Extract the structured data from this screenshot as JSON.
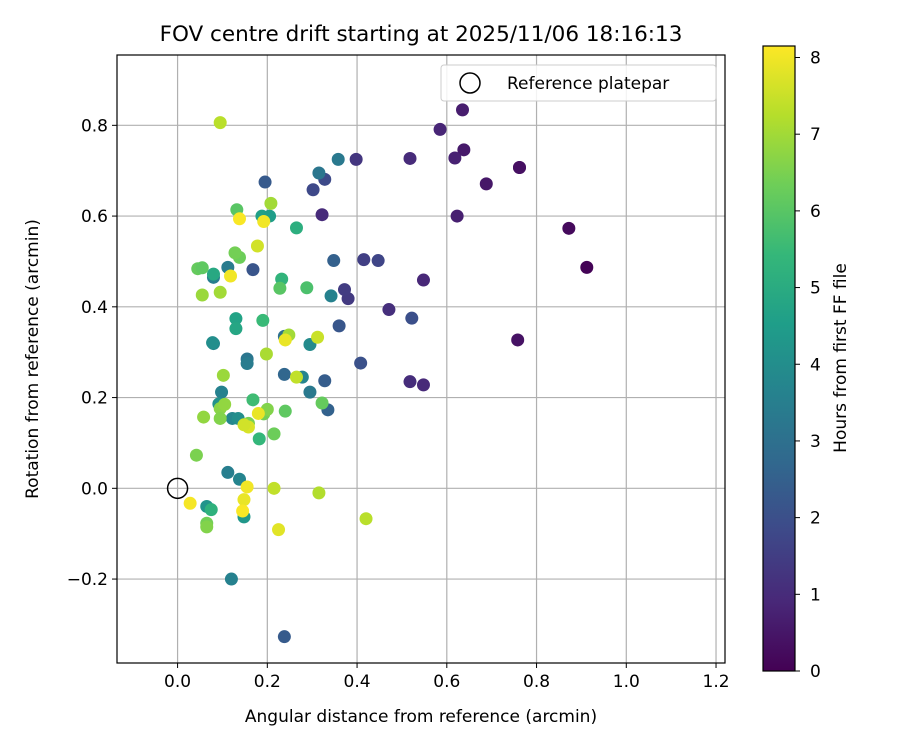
{
  "chart_data": {
    "type": "scatter",
    "title": "FOV centre drift starting at 2025/11/06 18:16:13",
    "xlabel": "Angular distance from reference (arcmin)",
    "ylabel": "Rotation from reference (arcmin)",
    "xlim": [
      -0.135,
      1.22
    ],
    "ylim": [
      -0.385,
      0.955
    ],
    "xticks": [
      0.0,
      0.2,
      0.4,
      0.6,
      0.8,
      1.0,
      1.2
    ],
    "xtick_labels": [
      "0.0",
      "0.2",
      "0.4",
      "0.6",
      "0.8",
      "1.0",
      "1.2"
    ],
    "yticks": [
      -0.2,
      0.0,
      0.2,
      0.4,
      0.6,
      0.8
    ],
    "ytick_labels": [
      "−0.2",
      "0.0",
      "0.2",
      "0.4",
      "0.6",
      "0.8"
    ],
    "grid": true,
    "legend": {
      "position": "top-right",
      "entries": [
        "Reference platepar"
      ]
    },
    "reference_point": {
      "x": 0.0,
      "y": 0.0,
      "label": "Reference platepar"
    },
    "colorbar": {
      "label": "Hours from first FF file",
      "min": 0,
      "max": 8.15,
      "ticks": [
        0,
        1,
        2,
        3,
        4,
        5,
        6,
        7,
        8
      ],
      "tick_labels": [
        "0",
        "1",
        "2",
        "3",
        "4",
        "5",
        "6",
        "7",
        "8"
      ],
      "colormap": "viridis"
    },
    "points": [
      {
        "x": 0.912,
        "y": 0.487,
        "h": 0.05
      },
      {
        "x": 0.872,
        "y": 0.573,
        "h": 0.2
      },
      {
        "x": 0.762,
        "y": 0.707,
        "h": 0.25
      },
      {
        "x": 0.762,
        "y": 0.707,
        "h": 0.35
      },
      {
        "x": 0.758,
        "y": 0.327,
        "h": 0.4
      },
      {
        "x": 0.688,
        "y": 0.671,
        "h": 0.5
      },
      {
        "x": 0.638,
        "y": 0.746,
        "h": 0.55
      },
      {
        "x": 0.635,
        "y": 0.834,
        "h": 0.65
      },
      {
        "x": 0.623,
        "y": 0.6,
        "h": 0.7
      },
      {
        "x": 0.618,
        "y": 0.728,
        "h": 0.75
      },
      {
        "x": 0.585,
        "y": 0.791,
        "h": 0.85
      },
      {
        "x": 0.548,
        "y": 0.459,
        "h": 0.9
      },
      {
        "x": 0.548,
        "y": 0.228,
        "h": 0.95
      },
      {
        "x": 0.518,
        "y": 0.727,
        "h": 1.0
      },
      {
        "x": 0.518,
        "y": 0.235,
        "h": 1.05
      },
      {
        "x": 0.471,
        "y": 0.394,
        "h": 1.1
      },
      {
        "x": 0.398,
        "y": 0.725,
        "h": 1.3
      },
      {
        "x": 0.38,
        "y": 0.418,
        "h": 1.4
      },
      {
        "x": 0.372,
        "y": 0.438,
        "h": 1.45
      },
      {
        "x": 0.322,
        "y": 0.603,
        "h": 1.0
      },
      {
        "x": 0.415,
        "y": 0.504,
        "h": 1.55
      },
      {
        "x": 0.447,
        "y": 0.502,
        "h": 1.7
      },
      {
        "x": 0.328,
        "y": 0.681,
        "h": 1.85
      },
      {
        "x": 0.302,
        "y": 0.658,
        "h": 1.8
      },
      {
        "x": 0.522,
        "y": 0.375,
        "h": 2.0
      },
      {
        "x": 0.408,
        "y": 0.276,
        "h": 2.05
      },
      {
        "x": 0.36,
        "y": 0.358,
        "h": 2.2
      },
      {
        "x": 0.348,
        "y": 0.502,
        "h": 2.5
      },
      {
        "x": 0.195,
        "y": 0.675,
        "h": 2.3
      },
      {
        "x": 0.168,
        "y": 0.482,
        "h": 2.15
      },
      {
        "x": 0.328,
        "y": 0.237,
        "h": 2.4
      },
      {
        "x": 0.335,
        "y": 0.173,
        "h": 2.55
      },
      {
        "x": 0.238,
        "y": 0.251,
        "h": 2.7
      },
      {
        "x": 0.238,
        "y": -0.327,
        "h": 2.35
      },
      {
        "x": 0.358,
        "y": 0.725,
        "h": 3.3
      },
      {
        "x": 0.315,
        "y": 0.695,
        "h": 3.2
      },
      {
        "x": 0.342,
        "y": 0.424,
        "h": 3.6
      },
      {
        "x": 0.238,
        "y": 0.335,
        "h": 3.0
      },
      {
        "x": 0.295,
        "y": 0.212,
        "h": 3.3
      },
      {
        "x": 0.278,
        "y": 0.245,
        "h": 3.7
      },
      {
        "x": 0.295,
        "y": 0.317,
        "h": 3.9
      },
      {
        "x": 0.155,
        "y": 0.285,
        "h": 3.2
      },
      {
        "x": 0.155,
        "y": 0.275,
        "h": 3.4
      },
      {
        "x": 0.112,
        "y": 0.487,
        "h": 3.4
      },
      {
        "x": 0.08,
        "y": 0.465,
        "h": 3.5
      },
      {
        "x": 0.08,
        "y": 0.319,
        "h": 3.8
      },
      {
        "x": 0.078,
        "y": 0.321,
        "h": 4.0
      },
      {
        "x": 0.098,
        "y": 0.212,
        "h": 3.6
      },
      {
        "x": 0.112,
        "y": 0.035,
        "h": 3.5
      },
      {
        "x": 0.12,
        "y": -0.2,
        "h": 3.6
      },
      {
        "x": 0.138,
        "y": 0.02,
        "h": 3.7
      },
      {
        "x": 0.122,
        "y": 0.154,
        "h": 3.8
      },
      {
        "x": 0.135,
        "y": 0.154,
        "h": 4.0
      },
      {
        "x": 0.092,
        "y": 0.186,
        "h": 4.1
      },
      {
        "x": 0.065,
        "y": -0.04,
        "h": 4.2
      },
      {
        "x": 0.148,
        "y": -0.063,
        "h": 4.3
      },
      {
        "x": 0.188,
        "y": 0.6,
        "h": 4.6
      },
      {
        "x": 0.205,
        "y": 0.6,
        "h": 4.5
      },
      {
        "x": 0.13,
        "y": 0.374,
        "h": 4.7
      },
      {
        "x": 0.13,
        "y": 0.352,
        "h": 4.8
      },
      {
        "x": 0.08,
        "y": 0.472,
        "h": 4.9
      },
      {
        "x": 0.075,
        "y": -0.047,
        "h": 5.2
      },
      {
        "x": 0.265,
        "y": 0.574,
        "h": 5.1
      },
      {
        "x": 0.232,
        "y": 0.461,
        "h": 5.3
      },
      {
        "x": 0.182,
        "y": 0.109,
        "h": 5.4
      },
      {
        "x": 0.19,
        "y": 0.37,
        "h": 5.5
      },
      {
        "x": 0.168,
        "y": 0.195,
        "h": 5.6
      },
      {
        "x": 0.288,
        "y": 0.442,
        "h": 5.8
      },
      {
        "x": 0.228,
        "y": 0.441,
        "h": 6.0
      },
      {
        "x": 0.132,
        "y": 0.614,
        "h": 6.0
      },
      {
        "x": 0.045,
        "y": 0.484,
        "h": 6.2
      },
      {
        "x": 0.055,
        "y": 0.486,
        "h": 6.1
      },
      {
        "x": 0.138,
        "y": 0.509,
        "h": 6.3
      },
      {
        "x": 0.128,
        "y": 0.519,
        "h": 6.4
      },
      {
        "x": 0.322,
        "y": 0.188,
        "h": 6.2
      },
      {
        "x": 0.24,
        "y": 0.17,
        "h": 6.1
      },
      {
        "x": 0.215,
        "y": 0.12,
        "h": 6.3
      },
      {
        "x": 0.192,
        "y": 0.164,
        "h": 6.4
      },
      {
        "x": 0.2,
        "y": 0.174,
        "h": 6.6
      },
      {
        "x": 0.158,
        "y": 0.143,
        "h": 6.5
      },
      {
        "x": 0.095,
        "y": 0.176,
        "h": 6.7
      },
      {
        "x": 0.095,
        "y": 0.154,
        "h": 6.6
      },
      {
        "x": 0.105,
        "y": 0.185,
        "h": 6.8
      },
      {
        "x": 0.102,
        "y": 0.249,
        "h": 6.9
      },
      {
        "x": 0.058,
        "y": 0.157,
        "h": 6.8
      },
      {
        "x": 0.042,
        "y": 0.073,
        "h": 6.5
      },
      {
        "x": 0.065,
        "y": -0.077,
        "h": 6.4
      },
      {
        "x": 0.065,
        "y": -0.085,
        "h": 6.6
      },
      {
        "x": 0.095,
        "y": 0.432,
        "h": 7.0
      },
      {
        "x": 0.055,
        "y": 0.426,
        "h": 6.9
      },
      {
        "x": 0.248,
        "y": 0.338,
        "h": 7.0
      },
      {
        "x": 0.198,
        "y": 0.296,
        "h": 7.1
      },
      {
        "x": 0.208,
        "y": 0.628,
        "h": 7.0
      },
      {
        "x": 0.095,
        "y": 0.806,
        "h": 7.3
      },
      {
        "x": 0.315,
        "y": -0.01,
        "h": 7.2
      },
      {
        "x": 0.42,
        "y": -0.067,
        "h": 7.3
      },
      {
        "x": 0.265,
        "y": 0.245,
        "h": 7.4
      },
      {
        "x": 0.312,
        "y": 0.333,
        "h": 7.5
      },
      {
        "x": 0.178,
        "y": 0.534,
        "h": 7.6
      },
      {
        "x": 0.215,
        "y": 0.0,
        "h": 7.4
      },
      {
        "x": 0.158,
        "y": 0.135,
        "h": 7.7
      },
      {
        "x": 0.148,
        "y": 0.14,
        "h": 7.6
      },
      {
        "x": 0.225,
        "y": -0.091,
        "h": 7.8
      },
      {
        "x": 0.24,
        "y": 0.327,
        "h": 7.9
      },
      {
        "x": 0.18,
        "y": 0.165,
        "h": 7.9
      },
      {
        "x": 0.118,
        "y": 0.468,
        "h": 8.0
      },
      {
        "x": 0.192,
        "y": 0.588,
        "h": 8.0
      },
      {
        "x": 0.138,
        "y": 0.594,
        "h": 8.1
      },
      {
        "x": 0.155,
        "y": 0.003,
        "h": 8.0
      },
      {
        "x": 0.148,
        "y": -0.025,
        "h": 7.9
      },
      {
        "x": 0.145,
        "y": -0.05,
        "h": 8.1
      },
      {
        "x": 0.028,
        "y": -0.033,
        "h": 8.05
      }
    ]
  }
}
